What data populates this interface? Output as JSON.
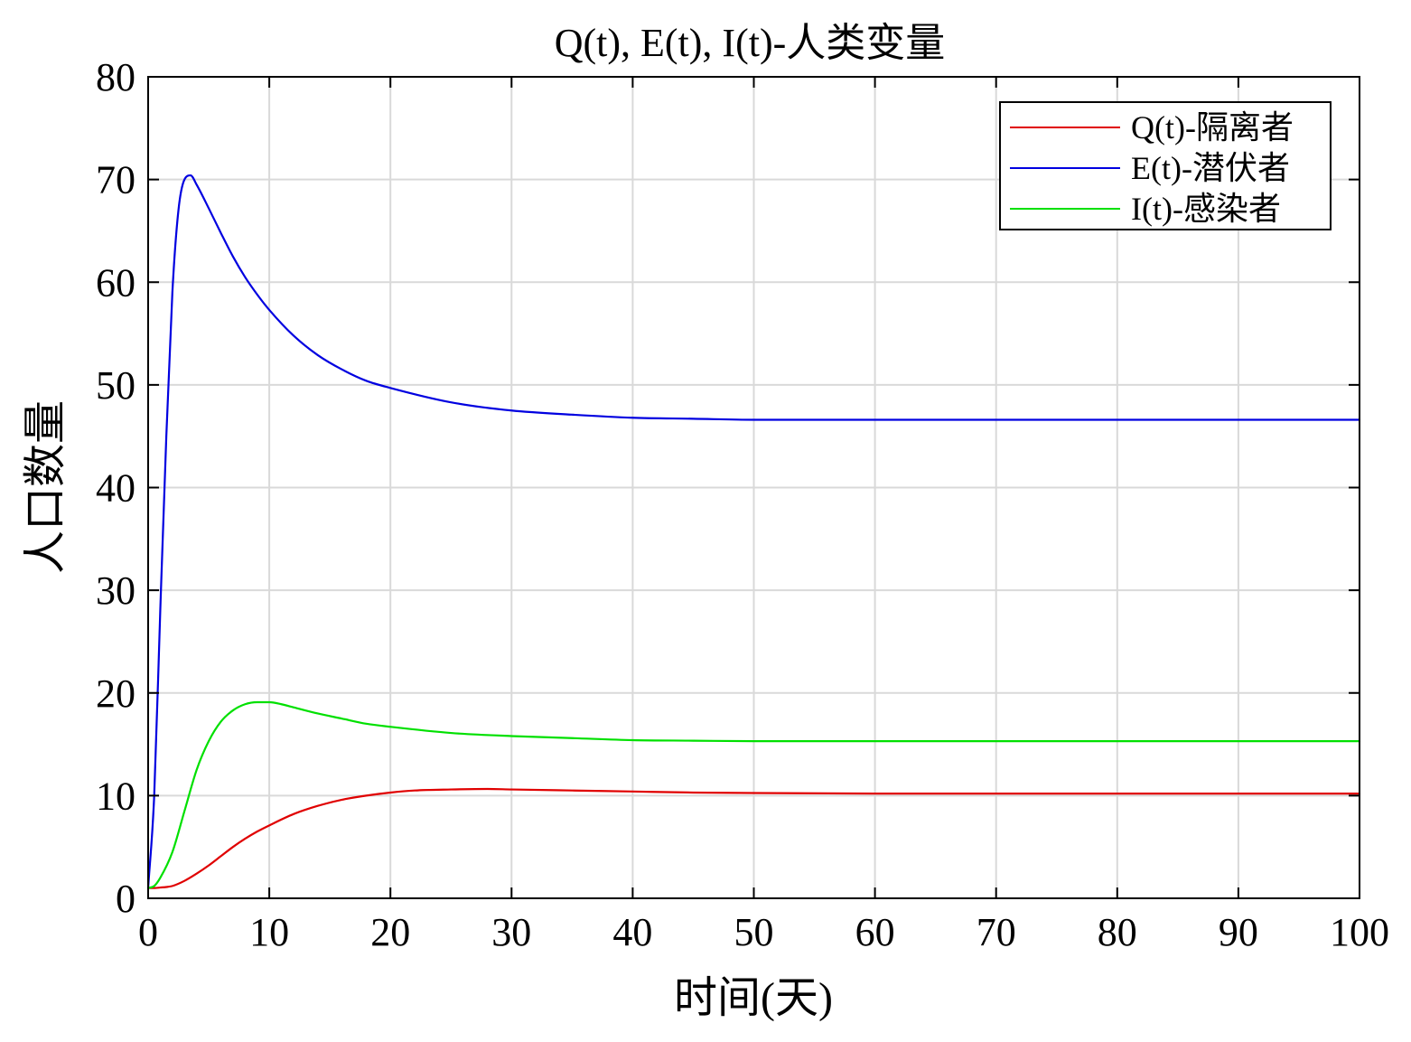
{
  "chart_data": {
    "type": "line",
    "title": "Q(t), E(t), I(t)-人类变量",
    "xlabel": "时间(天)",
    "ylabel": "人口数量",
    "xlim": [
      0,
      100
    ],
    "ylim": [
      0,
      80
    ],
    "xticks": [
      0,
      10,
      20,
      30,
      40,
      50,
      60,
      70,
      80,
      90,
      100
    ],
    "yticks": [
      0,
      10,
      20,
      30,
      40,
      50,
      60,
      70,
      80
    ],
    "grid": true,
    "legend_position": "top-right",
    "series": [
      {
        "name": "Q(t)-隔离者",
        "color": "#e00000",
        "x": [
          0,
          0.5,
          1,
          1.5,
          2,
          3,
          4,
          5,
          6,
          7,
          8,
          9,
          10,
          12,
          14,
          16,
          18,
          20,
          22,
          25,
          28,
          30,
          35,
          40,
          45,
          50,
          60,
          70,
          80,
          90,
          100
        ],
        "y": [
          1.0,
          1.0,
          1.05,
          1.1,
          1.2,
          1.7,
          2.4,
          3.2,
          4.1,
          5.0,
          5.8,
          6.5,
          7.1,
          8.2,
          9.0,
          9.6,
          10.0,
          10.3,
          10.5,
          10.6,
          10.65,
          10.6,
          10.5,
          10.4,
          10.3,
          10.25,
          10.2,
          10.2,
          10.2,
          10.2,
          10.2
        ]
      },
      {
        "name": "E(t)-潜伏者",
        "color": "#0000e0",
        "x": [
          0,
          0.5,
          1,
          1.5,
          2,
          2.5,
          3,
          3.5,
          4,
          5,
          6,
          7,
          8,
          9,
          10,
          12,
          14,
          16,
          18,
          20,
          25,
          30,
          35,
          40,
          45,
          50,
          60,
          70,
          80,
          90,
          100
        ],
        "y": [
          1.0,
          10.0,
          28.0,
          45.0,
          59.0,
          67.0,
          70.0,
          70.4,
          69.5,
          67.2,
          64.8,
          62.5,
          60.5,
          58.8,
          57.3,
          54.8,
          52.9,
          51.5,
          50.4,
          49.7,
          48.3,
          47.5,
          47.1,
          46.8,
          46.7,
          46.6,
          46.6,
          46.6,
          46.6,
          46.6,
          46.6
        ]
      },
      {
        "name": "I(t)-感染者",
        "color": "#00e000",
        "x": [
          0,
          0.5,
          1,
          2,
          3,
          4,
          5,
          6,
          7,
          8,
          9,
          10,
          11,
          12,
          14,
          16,
          18,
          20,
          25,
          30,
          35,
          40,
          45,
          50,
          60,
          70,
          80,
          90,
          100
        ],
        "y": [
          1.0,
          1.2,
          2.0,
          4.5,
          8.5,
          12.5,
          15.3,
          17.2,
          18.3,
          18.9,
          19.1,
          19.1,
          18.9,
          18.6,
          18.0,
          17.5,
          17.0,
          16.7,
          16.1,
          15.8,
          15.6,
          15.4,
          15.35,
          15.3,
          15.3,
          15.3,
          15.3,
          15.3,
          15.3
        ]
      }
    ]
  }
}
